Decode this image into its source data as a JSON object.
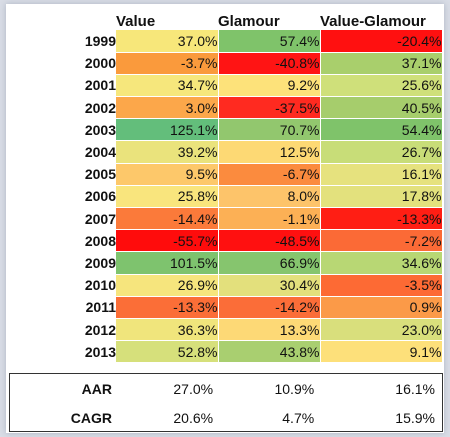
{
  "columns": [
    "Value",
    "Glamour",
    "Value-Glamour"
  ],
  "rows": [
    {
      "year": "1999",
      "values": [
        "37.0%",
        "57.4%",
        "-20.4%"
      ],
      "colors": [
        "#f7e77a",
        "#7fc36a",
        "#ff1010"
      ]
    },
    {
      "year": "2000",
      "values": [
        "-3.7%",
        "-40.8%",
        "37.1%"
      ],
      "colors": [
        "#fa9a3c",
        "#ff1414",
        "#a9cf6c"
      ]
    },
    {
      "year": "2001",
      "values": [
        "34.7%",
        "9.2%",
        "25.6%"
      ],
      "colors": [
        "#f6e77c",
        "#fde27a",
        "#cfe07a"
      ]
    },
    {
      "year": "2002",
      "values": [
        "3.0%",
        "-37.5%",
        "40.5%"
      ],
      "colors": [
        "#fca74a",
        "#ff2a20",
        "#a6cd6c"
      ]
    },
    {
      "year": "2003",
      "values": [
        "125.1%",
        "70.7%",
        "54.4%"
      ],
      "colors": [
        "#63be7b",
        "#92c76e",
        "#7fc36a"
      ]
    },
    {
      "year": "2004",
      "values": [
        "39.2%",
        "12.5%",
        "26.7%"
      ],
      "colors": [
        "#eae37c",
        "#fdd974",
        "#c8dd78"
      ]
    },
    {
      "year": "2005",
      "values": [
        "9.5%",
        "-6.7%",
        "16.1%"
      ],
      "colors": [
        "#fdc86a",
        "#fb8b3e",
        "#e6e27e"
      ]
    },
    {
      "year": "2006",
      "values": [
        "25.8%",
        "8.0%",
        "17.8%"
      ],
      "colors": [
        "#f9e57d",
        "#fdc46a",
        "#e3e17d"
      ]
    },
    {
      "year": "2007",
      "values": [
        "-14.4%",
        "-1.1%",
        "-13.3%"
      ],
      "colors": [
        "#fb7a3a",
        "#fcb055",
        "#ff1e14"
      ]
    },
    {
      "year": "2008",
      "values": [
        "-55.7%",
        "-48.5%",
        "-7.2%"
      ],
      "colors": [
        "#ff0c0c",
        "#ff1010",
        "#fb6a36"
      ]
    },
    {
      "year": "2009",
      "values": [
        "101.5%",
        "66.9%",
        "34.6%"
      ],
      "colors": [
        "#7ec36e",
        "#86c56e",
        "#b8d774"
      ]
    },
    {
      "year": "2010",
      "values": [
        "26.9%",
        "30.4%",
        "-3.5%"
      ],
      "colors": [
        "#f6e57d",
        "#e3e07c",
        "#fd6a34"
      ]
    },
    {
      "year": "2011",
      "values": [
        "-13.3%",
        "-14.2%",
        "0.9%"
      ],
      "colors": [
        "#fb6e37",
        "#fb6d38",
        "#fb9a48"
      ]
    },
    {
      "year": "2012",
      "values": [
        "36.3%",
        "13.3%",
        "23.0%"
      ],
      "colors": [
        "#f0e57c",
        "#fdd976",
        "#d9df7c"
      ]
    },
    {
      "year": "2013",
      "values": [
        "52.8%",
        "43.8%",
        "9.1%"
      ],
      "colors": [
        "#d6e07b",
        "#a9cf70",
        "#fde07a"
      ]
    }
  ],
  "summary": [
    {
      "label": "AAR",
      "values": [
        "27.0%",
        "10.9%",
        "16.1%"
      ]
    },
    {
      "label": "CAGR",
      "values": [
        "20.6%",
        "4.7%",
        "15.9%"
      ]
    }
  ]
}
